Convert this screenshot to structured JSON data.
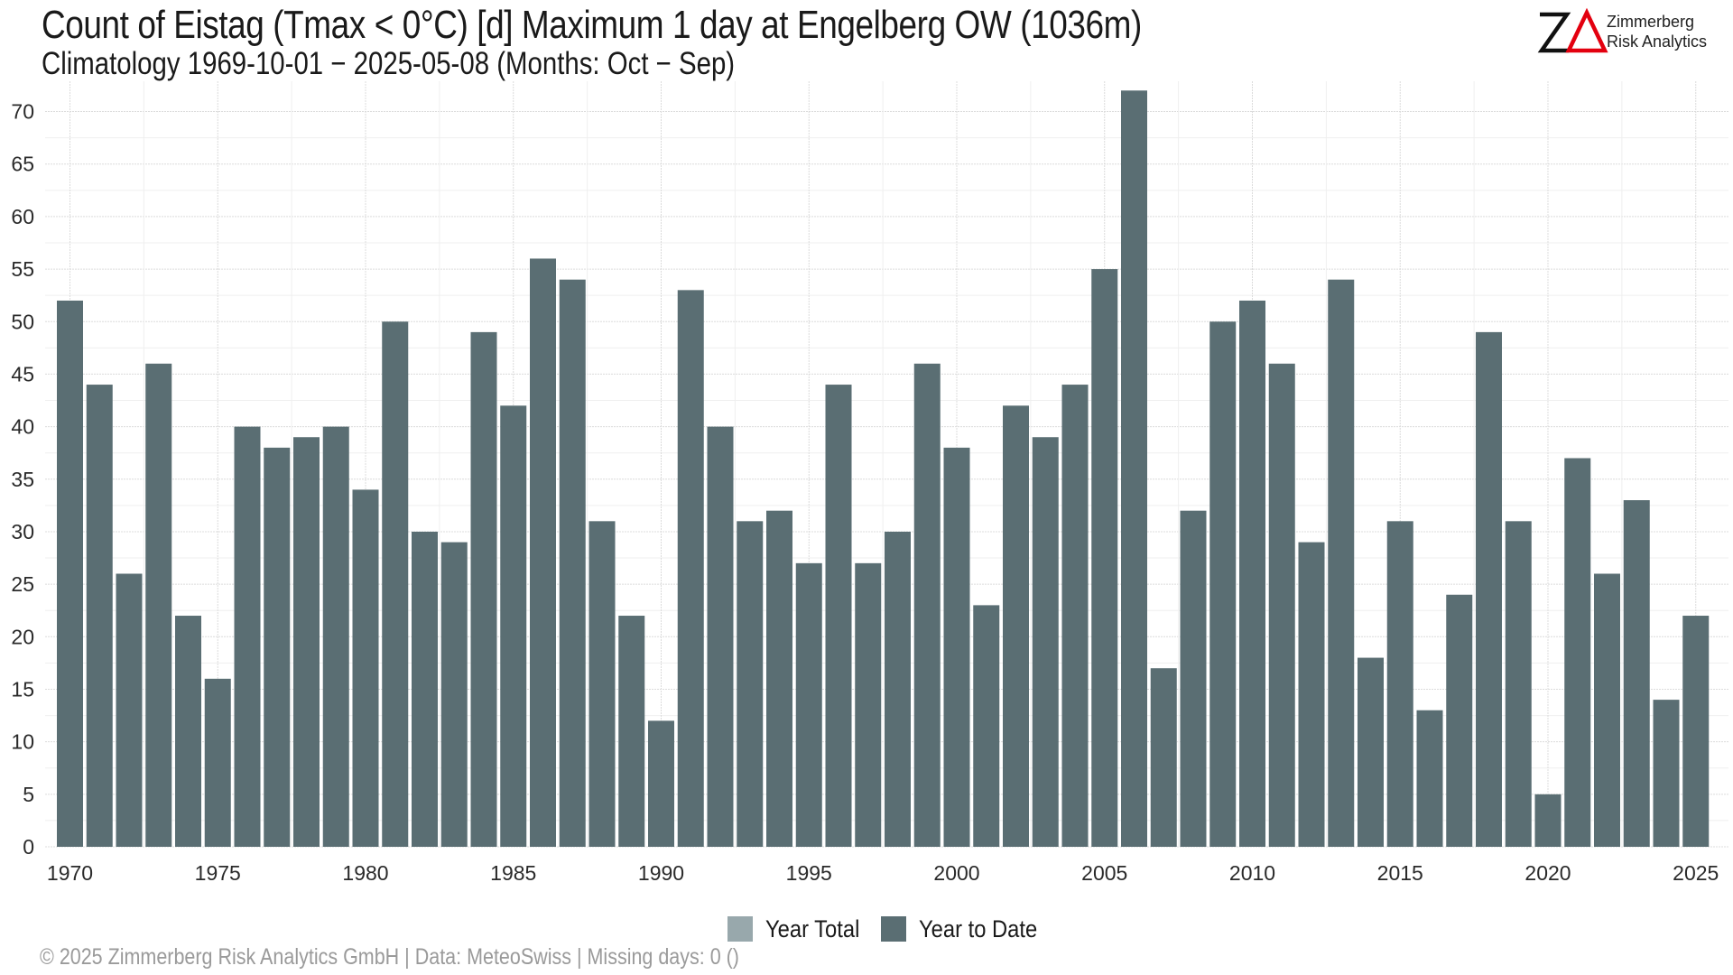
{
  "title": "Count of Eistag (Tmax < 0°C) [d] Maximum 1 day at Engelberg  OW (1036m)",
  "subtitle": "Climatology 1969-10-01 − 2025-05-08 (Months: Oct − Sep)",
  "logo": {
    "mark": "ZΔ",
    "line1": "Zimmerberg",
    "line2": "Risk Analytics"
  },
  "footer": "©  2025 Zimmerberg Risk Analytics GmbH | Data: MeteoSwiss | Missing days: 0 ()",
  "colors": {
    "year_total": "#98a8ac",
    "year_to_date": "#5a6e73",
    "logo_accent": "#e3000f"
  },
  "legend": [
    {
      "label": "Year Total",
      "color": "#98a8ac"
    },
    {
      "label": "Year to Date",
      "color": "#5a6e73"
    }
  ],
  "chart_data": {
    "type": "bar",
    "title": "Count of Eistag (Tmax < 0°C) [d] Maximum 1 day at Engelberg  OW (1036m)",
    "xlabel": "",
    "ylabel": "",
    "ylim": [
      0,
      72
    ],
    "yticks": [
      0,
      5,
      10,
      15,
      20,
      25,
      30,
      35,
      40,
      45,
      50,
      55,
      60,
      65,
      70
    ],
    "xticks": [
      1970,
      1975,
      1980,
      1985,
      1990,
      1995,
      2000,
      2005,
      2010,
      2015,
      2020,
      2025
    ],
    "grid": true,
    "legend_position": "bottom",
    "categories": [
      1970,
      1971,
      1972,
      1973,
      1974,
      1975,
      1976,
      1977,
      1978,
      1979,
      1980,
      1981,
      1982,
      1983,
      1984,
      1985,
      1986,
      1987,
      1988,
      1989,
      1990,
      1991,
      1992,
      1993,
      1994,
      1995,
      1996,
      1997,
      1998,
      1999,
      2000,
      2001,
      2002,
      2003,
      2004,
      2005,
      2006,
      2007,
      2008,
      2009,
      2010,
      2011,
      2012,
      2013,
      2014,
      2015,
      2016,
      2017,
      2018,
      2019,
      2020,
      2021,
      2022,
      2023,
      2024,
      2025
    ],
    "series": [
      {
        "name": "Year to Date",
        "values": [
          52,
          44,
          26,
          46,
          22,
          16,
          40,
          38,
          39,
          40,
          34,
          50,
          30,
          29,
          49,
          42,
          56,
          54,
          31,
          22,
          12,
          53,
          40,
          31,
          32,
          27,
          44,
          27,
          30,
          46,
          38,
          23,
          42,
          39,
          44,
          55,
          72,
          17,
          32,
          50,
          52,
          46,
          29,
          54,
          18,
          31,
          13,
          24,
          49,
          31,
          5,
          37,
          26,
          33,
          14,
          22
        ]
      }
    ]
  }
}
